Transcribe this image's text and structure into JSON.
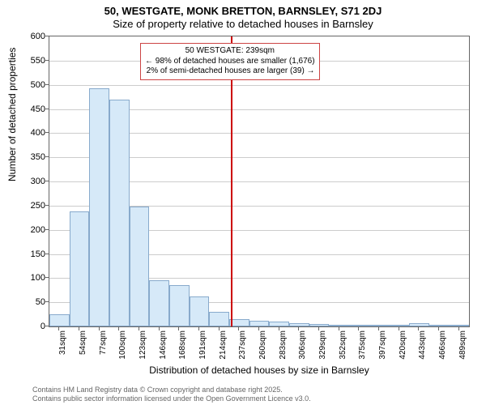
{
  "title_line1": "50, WESTGATE, MONK BRETTON, BARNSLEY, S71 2DJ",
  "title_line2": "Size of property relative to detached houses in Barnsley",
  "y_axis_label": "Number of detached properties",
  "x_axis_label": "Distribution of detached houses by size in Barnsley",
  "footer_line1": "Contains HM Land Registry data © Crown copyright and database right 2025.",
  "footer_line2": "Contains public sector information licensed under the Open Government Licence v3.0.",
  "chart": {
    "type": "histogram",
    "background_color": "#ffffff",
    "grid_color": "#cccccc",
    "bar_fill_color": "#d6e9f8",
    "bar_border_color": "#88aacc",
    "axis_color": "#666666",
    "ylim": [
      0,
      600
    ],
    "y_ticks": [
      0,
      50,
      100,
      150,
      200,
      250,
      300,
      350,
      400,
      450,
      500,
      550,
      600
    ],
    "x_tick_labels": [
      "31sqm",
      "54sqm",
      "77sqm",
      "100sqm",
      "123sqm",
      "146sqm",
      "168sqm",
      "191sqm",
      "214sqm",
      "237sqm",
      "260sqm",
      "283sqm",
      "306sqm",
      "329sqm",
      "352sqm",
      "375sqm",
      "397sqm",
      "420sqm",
      "443sqm",
      "466sqm",
      "489sqm"
    ],
    "bars": [
      25,
      238,
      493,
      470,
      248,
      95,
      85,
      62,
      30,
      15,
      12,
      10,
      6,
      5,
      3,
      2,
      3,
      2,
      6,
      2,
      2
    ],
    "marker_line": {
      "x_value_sqm": 239,
      "color": "#cc0000",
      "width": 2
    },
    "annotation": {
      "line1": "50 WESTGATE: 239sqm",
      "line2": "← 98% of detached houses are smaller (1,676)",
      "line3": "2% of semi-detached houses are larger (39) →",
      "border_color": "#cc4444",
      "font_size": 10
    },
    "title_fontsize": 13,
    "axis_label_fontsize": 12,
    "tick_fontsize": 11,
    "x_tick_fontsize": 10
  }
}
